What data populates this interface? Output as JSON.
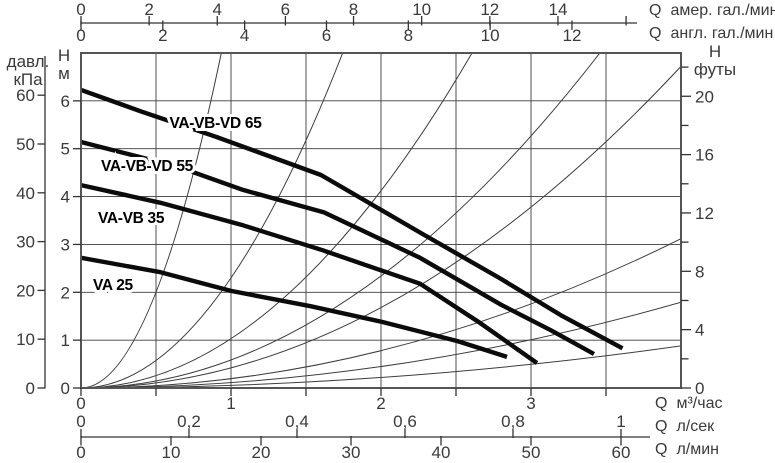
{
  "chart_data": {
    "type": "line",
    "title": "",
    "plot": {
      "x_unit": "м³/час",
      "y_unit": "м",
      "x_range_m3h": [
        0,
        4.0
      ],
      "y_range_m": [
        0,
        7
      ],
      "grid_step_x_m3h": 0.5,
      "grid_step_y_m": 1,
      "grid": "on"
    },
    "pump_curves": [
      {
        "name": "VA-VB-VD 65",
        "label_pos": {
          "q": 0.59,
          "h": 5.43
        },
        "points": [
          [
            0,
            6.23
          ],
          [
            0.4,
            5.78
          ],
          [
            0.9,
            5.25
          ],
          [
            1.6,
            4.45
          ],
          [
            2.26,
            3.25
          ],
          [
            2.8,
            2.28
          ],
          [
            3.2,
            1.52
          ],
          [
            3.61,
            0.83
          ]
        ]
      },
      {
        "name": "VA-VB-VD 55",
        "label_pos": {
          "q": 0.133,
          "h": 4.53
        },
        "points": [
          [
            0,
            5.14
          ],
          [
            0.65,
            4.62
          ],
          [
            1.08,
            4.14
          ],
          [
            1.62,
            3.67
          ],
          [
            2.26,
            2.72
          ],
          [
            2.8,
            1.74
          ],
          [
            3.13,
            1.21
          ],
          [
            3.42,
            0.71
          ]
        ]
      },
      {
        "name": "VA-VB 35",
        "label_pos": {
          "q": 0.113,
          "h": 3.45
        },
        "points": [
          [
            0,
            4.24
          ],
          [
            0.53,
            3.87
          ],
          [
            1.08,
            3.4
          ],
          [
            1.61,
            2.88
          ],
          [
            2.26,
            2.18
          ],
          [
            2.66,
            1.36
          ],
          [
            3.04,
            0.52
          ]
        ]
      },
      {
        "name": "VA 25",
        "label_pos": {
          "q": 0.08,
          "h": 2.05
        },
        "points": [
          [
            0,
            2.72
          ],
          [
            0.53,
            2.42
          ],
          [
            1.0,
            2.03
          ],
          [
            1.53,
            1.71
          ],
          [
            2.01,
            1.38
          ],
          [
            2.51,
            0.98
          ],
          [
            2.84,
            0.65
          ]
        ]
      }
    ],
    "system_curves": {
      "formula": "H = k·Q²",
      "k_values": [
        8.0,
        2.3,
        1.03,
        0.585,
        0.42,
        0.195,
        0.112,
        0.055
      ]
    },
    "axes": {
      "top": [
        {
          "id": "us_gpm",
          "q_label": "Q",
          "unit": "амер. гал./мин",
          "m3h_per_unit": 0.22712,
          "ticks": [
            0,
            2,
            4,
            6,
            8,
            10,
            12,
            14
          ],
          "tick_labels": [
            "0",
            "2",
            "4",
            "6",
            "8",
            "10",
            "12",
            "14"
          ],
          "minor_ticks": [
            16
          ]
        },
        {
          "id": "imp_gpm",
          "q_label": "Q",
          "unit": "англ. гал./мин",
          "m3h_per_unit": 0.27276,
          "ticks": [
            0,
            2,
            4,
            6,
            8,
            10,
            12
          ],
          "tick_labels": [
            "0",
            "2",
            "4",
            "6",
            "8",
            "10",
            "12"
          ],
          "minor_ticks": []
        }
      ],
      "bottom": [
        {
          "id": "m3h",
          "q_label": "Q",
          "unit": "м³/час",
          "m3h_per_unit": 1,
          "ticks": [
            0,
            1,
            2,
            3
          ],
          "tick_labels": [
            "0",
            "1",
            "2",
            "3"
          ],
          "minor_ticks": [
            0.5,
            1.5,
            2.5,
            3.5
          ]
        },
        {
          "id": "lsec",
          "q_label": "Q",
          "unit": "л/сек",
          "m3h_per_unit": 3.6,
          "ticks": [
            0,
            0.2,
            0.4,
            0.6,
            0.8,
            1
          ],
          "tick_labels": [
            "0",
            "0,2",
            "0,4",
            "0,6",
            "0,8",
            "1"
          ],
          "minor_ticks": []
        },
        {
          "id": "lmin",
          "q_label": "Q",
          "unit": "л/мин",
          "m3h_per_unit": 0.06,
          "ticks": [
            0,
            10,
            20,
            30,
            40,
            50,
            60
          ],
          "tick_labels": [
            "0",
            "10",
            "20",
            "30",
            "40",
            "50",
            "60"
          ],
          "minor_ticks": []
        }
      ],
      "left": [
        {
          "id": "kpa",
          "title": [
            "давл.",
            "кПа"
          ],
          "m_per_unit": 0.10197,
          "ticks": [
            0,
            10,
            20,
            30,
            40,
            50,
            60
          ],
          "tick_labels": [
            "0",
            "10",
            "20",
            "30",
            "40",
            "50",
            "60"
          ]
        },
        {
          "id": "m",
          "title": [
            "H",
            "м"
          ],
          "m_per_unit": 1,
          "ticks": [
            0,
            1,
            2,
            3,
            4,
            5,
            6
          ],
          "tick_labels": [
            "0",
            "1",
            "2",
            "3",
            "4",
            "5",
            "6"
          ]
        }
      ],
      "right": [
        {
          "id": "ft",
          "title": [
            "H",
            "футы"
          ],
          "m_per_unit": 0.3048,
          "ticks": [
            0,
            4,
            8,
            12,
            16,
            20
          ],
          "tick_labels": [
            "0",
            "4",
            "8",
            "12",
            "16",
            "20"
          ],
          "minor_ticks": [
            2,
            6,
            10,
            14,
            18,
            22
          ]
        }
      ]
    },
    "colors": {
      "curve": "#0b0b0b",
      "grid": "#3c3c3c",
      "border": "#555555",
      "text": "#3a3a3a",
      "background": "#ffffff"
    }
  }
}
